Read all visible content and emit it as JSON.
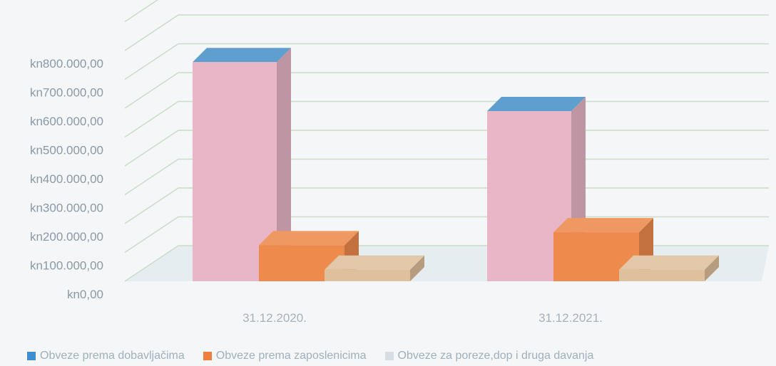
{
  "chart_data": {
    "type": "bar",
    "categories": [
      "31.12.2020.",
      "31.12.2021."
    ],
    "series": [
      {
        "name": "Obveze prema dobavljačima",
        "values": [
          760000,
          590000
        ],
        "color": "#e8b6c6"
      },
      {
        "name": "Obveze prema zaposlenicima",
        "values": [
          125000,
          170000
        ],
        "color": "#ee8a4c"
      },
      {
        "name": "Obveze za poreze,dop i druga davanja",
        "values": [
          40000,
          40000
        ],
        "color": "#dec09c"
      }
    ],
    "y_ticks": [
      "kn0,00",
      "kn100.000,00",
      "kn200.000,00",
      "kn300.000,00",
      "kn400.000,00",
      "kn500.000,00",
      "kn600.000,00",
      "kn700.000,00",
      "kn800.000,00"
    ],
    "ylim": [
      0,
      900000
    ],
    "grid": true,
    "style": "3d",
    "legend_position": "bottom",
    "title": "",
    "xlabel": "",
    "ylabel": ""
  }
}
